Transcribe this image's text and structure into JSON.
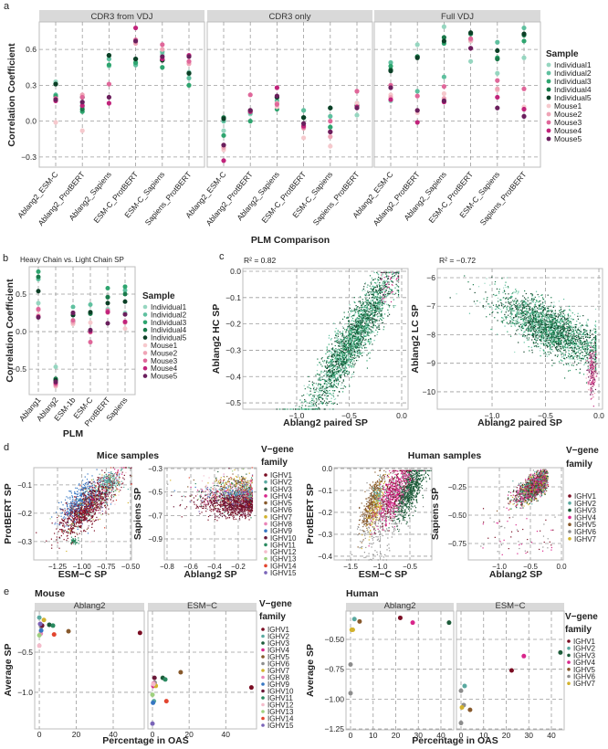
{
  "panel_labels": [
    "a",
    "b",
    "c",
    "d",
    "e"
  ],
  "sample_colors": [
    "#96d6c0",
    "#5fc09f",
    "#2ea56f",
    "#19794a",
    "#0b3f26",
    "#f6c9cd",
    "#efa4b6",
    "#e0679a",
    "#c1237b",
    "#6a1f5d"
  ],
  "vgene_colors": [
    "#7a0c22",
    "#5aa9a0",
    "#1d5c3a",
    "#d8268b",
    "#87592c",
    "#8d8d8d",
    "#d2b22d",
    "#e985b8",
    "#3676c2",
    "#6a1838",
    "#2a8a60",
    "#f4bccb",
    "#9fd07f",
    "#e2452f",
    "#7a64b8"
  ],
  "chart_data": [
    {
      "panel": "a",
      "type": "scatter",
      "xlabel": "PLM Comparison",
      "ylabel": "Correlation Coefficient",
      "ylim": [
        -0.385,
        0.83
      ],
      "yticks": [
        -0.3,
        0,
        0.3,
        0.6
      ],
      "ytick_labels": [
        "−0.3",
        "0.0",
        "0.3",
        "0.6"
      ],
      "categories": [
        "Ablang2_ESM-C",
        "Ablang2_ProtBERT",
        "Ablang2_Sapiens",
        "ESM-C_ProtBERT",
        "ESM-C_Sapiens",
        "Sapiens_ProtBERT"
      ],
      "facets": [
        {
          "title": "CDR3 from VDJ",
          "points": [
            [
              0.33,
              0.22,
              0.21,
              0.31,
              0.31,
              -0.01,
              0.18,
              0.19,
              0.17,
              0.18
            ],
            [
              0.15,
              0.12,
              0.08,
              0.1,
              0.2,
              -0.08,
              0.22,
              0.2,
              0.13,
              0.16
            ],
            [
              0.46,
              0.52,
              0.47,
              0.55,
              0.55,
              0.2,
              0.31,
              0.31,
              0.15,
              0.2
            ],
            [
              0.48,
              0.47,
              0.49,
              0.52,
              0.52,
              0.66,
              0.65,
              0.68,
              0.78,
              0.67
            ],
            [
              0.56,
              0.58,
              0.45,
              0.51,
              0.51,
              0.6,
              0.6,
              0.64,
              0.52,
              0.54
            ],
            [
              0.41,
              0.36,
              0.3,
              0.4,
              0.4,
              0.49,
              0.48,
              0.5,
              0.55,
              0.54
            ]
          ]
        },
        {
          "title": "CDR3 only",
          "points": [
            [
              -0.08,
              0.0,
              -0.12,
              0.03,
              0.02,
              -0.24,
              -0.22,
              -0.2,
              -0.33,
              -0.2
            ],
            [
              0.06,
              0.07,
              0.0,
              0.08,
              0.09,
              0.08,
              0.09,
              0.22,
              0.08,
              0.09
            ],
            [
              0.15,
              0.17,
              0.1,
              0.2,
              0.2,
              0.12,
              0.15,
              0.14,
              0.28,
              0.21
            ],
            [
              0.09,
              0.09,
              0.03,
              0.03,
              0.03,
              -0.14,
              -0.06,
              -0.05,
              -0.04,
              -0.02
            ],
            [
              -0.05,
              0.04,
              -0.05,
              0.11,
              0.11,
              -0.21,
              -0.13,
              0.0,
              -0.09,
              -0.09
            ],
            [
              0.05,
              0.15,
              0.12,
              0.13,
              0.12,
              0.15,
              0.25,
              0.25,
              0.12,
              0.11
            ]
          ]
        },
        {
          "title": "Full VDJ",
          "points": [
            [
              0.17,
              0.49,
              0.46,
              0.43,
              0.42,
              0.22,
              0.2,
              0.3,
              0.18,
              0.28
            ],
            [
              0.64,
              0.25,
              0.54,
              0.54,
              0.53,
              0.07,
              0.09,
              0.21,
              -0.01,
              0.09
            ],
            [
              0.79,
              0.37,
              0.65,
              0.7,
              0.67,
              0.23,
              0.19,
              0.29,
              0.16,
              0.17
            ],
            [
              0.5,
              0.68,
              0.67,
              0.73,
              0.74,
              0.67,
              0.68,
              0.69,
              0.61,
              0.61
            ],
            [
              0.4,
              0.66,
              0.53,
              0.52,
              0.59,
              0.26,
              0.27,
              0.34,
              0.2,
              0.11
            ],
            [
              0.53,
              0.78,
              0.67,
              0.72,
              0.73,
              0.12,
              0.1,
              0.27,
              0.1,
              0.04
            ]
          ]
        }
      ],
      "legend": {
        "title": "Sample",
        "entries": [
          "Individual1",
          "Individual2",
          "Individual3",
          "Individual4",
          "Individual5",
          "Mouse1",
          "Mouse2",
          "Mouse3",
          "Mouse4",
          "Mouse5"
        ]
      }
    },
    {
      "panel": "b",
      "type": "scatter",
      "title": "Heavy Chain vs. Light Chain SP",
      "xlabel": "PLM",
      "ylabel": "Correlation Coefficient",
      "ylim": [
        -0.84,
        0.866
      ],
      "yticks": [
        -0.5,
        0,
        0.5
      ],
      "ytick_labels": [
        "−0.5",
        "0.0",
        "0.5"
      ],
      "categories": [
        "Ablang1",
        "Ablang2",
        "ESM-1b",
        "ESM-C",
        "ProtBERT",
        "Sapiens"
      ],
      "points": [
        [
          0.38,
          0.7,
          0.8,
          0.73,
          0.54,
          0.22,
          0.29,
          0.3,
          0.2,
          0.19
        ],
        [
          -0.47,
          -0.7,
          -0.65,
          -0.63,
          -0.65,
          -0.73,
          -0.72,
          -0.7,
          -0.68,
          -0.67
        ],
        [
          0.15,
          0.33,
          0.22,
          0.13,
          0.22,
          0.1,
          0.12,
          0.15,
          0.25,
          0.25
        ],
        [
          0.25,
          0.36,
          0.24,
          0.24,
          0.26,
          0.12,
          -0.01,
          -0.14,
          0.0,
          0.02
        ],
        [
          0.3,
          0.46,
          0.58,
          0.46,
          0.38,
          0.25,
          0.27,
          0.28,
          0.26,
          0.11
        ],
        [
          0.25,
          0.55,
          0.6,
          0.5,
          0.4,
          0.04,
          0.12,
          0.13,
          0.13,
          0.23
        ]
      ],
      "legend": {
        "title": "Sample",
        "entries": [
          "Individual1",
          "Individual2",
          "Individual3",
          "Individual4",
          "Individual5",
          "Mouse1",
          "Mouse2",
          "Mouse3",
          "Mouse4",
          "Mouse5"
        ]
      }
    },
    {
      "panel": "c",
      "type": "scatter",
      "annotation": "R² = 0.82",
      "xlabel": "Ablang2 paired SP",
      "ylabel": "Ablang2 HC SP",
      "xlim": [
        -1.513,
        0.061
      ],
      "ylim": [
        -0.524,
        0.0104
      ],
      "xticks": [
        -1.0,
        -0.5,
        0.0
      ],
      "xtick_labels": [
        "−1.0",
        "−0.5",
        "0.0"
      ],
      "yticks": [
        0.0,
        -0.1,
        -0.2,
        -0.3,
        -0.4,
        -0.5
      ],
      "ytick_labels": [
        "0.0",
        "−0.1",
        "−0.2",
        "−0.3",
        "−0.4",
        "−0.5"
      ]
    },
    {
      "panel": "c",
      "type": "scatter",
      "annotation": "R² = −0.72",
      "xlabel": "Ablang2 paired SP",
      "ylabel": "Ablang2 LC SP",
      "xlim": [
        -1.513,
        0.034
      ],
      "ylim": [
        -10.61,
        -5.68
      ],
      "xticks": [
        -1.0,
        -0.5,
        0.0
      ],
      "xtick_labels": [
        "−1.0",
        "−0.5",
        "0.0"
      ],
      "yticks": [
        -6,
        -7,
        -8,
        -9,
        -10
      ],
      "ytick_labels": [
        "−6",
        "−7",
        "−8",
        "−9",
        "−10"
      ]
    },
    {
      "panel": "d",
      "type": "scatter",
      "group_title": "Mice samples",
      "xlabel": "ESM−C SP",
      "ylabel": "ProtBERT SP",
      "xlim": [
        -1.494,
        -0.49
      ],
      "ylim": [
        -0.365,
        -0.039
      ],
      "xticks": [
        -1.25,
        -1.0,
        -0.75,
        -0.5
      ],
      "xtick_labels": [
        "−1.25",
        "−1.00",
        "−0.75",
        "−0.50"
      ],
      "yticks": [
        -0.1,
        -0.2,
        -0.3
      ],
      "ytick_labels": [
        "−0.1",
        "−0.2",
        "−0.3"
      ]
    },
    {
      "panel": "d",
      "type": "scatter",
      "xlabel": "Ablang2 SP",
      "ylabel": "Sapiens SP",
      "xlim": [
        -0.823,
        -0.046
      ],
      "ylim": [
        -1.079,
        -0.292
      ],
      "xticks": [
        -0.8,
        -0.6,
        -0.4,
        -0.2
      ],
      "xtick_labels": [
        "−0.8",
        "−0.6",
        "−0.4",
        "−0.2"
      ],
      "yticks": [
        -0.3,
        -0.5,
        -0.7,
        -0.9
      ],
      "ytick_labels": [
        "−0.3",
        "−0.5",
        "−0.7",
        "−0.9"
      ],
      "legend": {
        "title_lines": [
          "V−gene",
          "family"
        ],
        "entries": [
          "IGHV1",
          "IGHV2",
          "IGHV3",
          "IGHV4",
          "IGHV5",
          "IGHV6",
          "IGHV7",
          "IGHV8",
          "IGHV9",
          "IGHV10",
          "IGHV11",
          "IGHV12",
          "IGHV13",
          "IGHV14",
          "IGHV15"
        ]
      }
    },
    {
      "panel": "d",
      "type": "scatter",
      "group_title": "Human samples",
      "xlabel": "ESM−C SP",
      "ylabel": "ProtBERT SP",
      "xlim": [
        -1.777,
        -0.131
      ],
      "ylim": [
        -0.417,
        0.004
      ],
      "xticks": [
        -1.5,
        -1.0,
        -0.5
      ],
      "xtick_labels": [
        "−1.5",
        "−1.0",
        "−0.5"
      ],
      "yticks": [
        0.0,
        -0.1,
        -0.2,
        -0.3,
        -0.4
      ],
      "ytick_labels": [
        "0.0",
        "−0.1",
        "−0.2",
        "−0.3",
        "−0.4"
      ]
    },
    {
      "panel": "d",
      "type": "scatter",
      "xlabel": "Ablang2 SP",
      "ylabel": "Sapiens SP",
      "xlim": [
        -1.5,
        0.029
      ],
      "ylim": [
        -0.895,
        -0.081
      ],
      "xticks": [
        -1.0,
        -0.5,
        0.0
      ],
      "xtick_labels": [
        "−1.0",
        "−0.5",
        "0.0"
      ],
      "yticks": [
        -0.25,
        -0.5,
        -0.75
      ],
      "ytick_labels": [
        "−0.25",
        "−0.50",
        "−0.75"
      ],
      "legend": {
        "title_lines": [
          "V−gene",
          "family"
        ],
        "entries": [
          "IGHV1",
          "IGHV2",
          "IGHV3",
          "IGHV4",
          "IGHV5",
          "IGHV6",
          "IGHV7"
        ]
      }
    },
    {
      "panel": "e",
      "type": "scatter",
      "group_title": "Mouse",
      "xlabel": "Percentage in OAS",
      "ylabel": "Average SP",
      "xlim": [
        -2.5,
        56.8
      ],
      "ylim": [
        -1.455,
        0.011
      ],
      "xticks": [
        0,
        20,
        40
      ],
      "xtick_labels": [
        "0",
        "20",
        "40"
      ],
      "yticks": [
        -0.5,
        -1.0
      ],
      "ytick_labels": [
        "−0.5",
        "−1.0"
      ],
      "facets": [
        {
          "title": "Ablang2",
          "points": [
            {
              "family": "IGHV1",
              "x": 54.5,
              "y": -0.26
            },
            {
              "family": "IGHV2",
              "x": 0.0,
              "y": -0.07
            },
            {
              "family": "IGHV3",
              "x": 5.4,
              "y": -0.16
            },
            {
              "family": "IGHV4",
              "x": 0.5,
              "y": -0.15
            },
            {
              "family": "IGHV5",
              "x": 15.8,
              "y": -0.24
            },
            {
              "family": "IGHV6",
              "x": 1.0,
              "y": -0.18
            },
            {
              "family": "IGHV7",
              "x": 2.5,
              "y": -0.1
            },
            {
              "family": "IGHV8",
              "x": 0.8,
              "y": -0.27
            },
            {
              "family": "IGHV9",
              "x": 1.0,
              "y": -0.23
            },
            {
              "family": "IGHV10",
              "x": 1.5,
              "y": -0.17
            },
            {
              "family": "IGHV11",
              "x": 7.4,
              "y": -0.17
            },
            {
              "family": "IGHV12",
              "x": 0.0,
              "y": -0.42
            },
            {
              "family": "IGHV13",
              "x": 0.0,
              "y": -0.29
            },
            {
              "family": "IGHV14",
              "x": 8.0,
              "y": -0.28
            },
            {
              "family": "IGHV15",
              "x": 0.5,
              "y": -0.15
            }
          ]
        },
        {
          "title": "ESM−C",
          "points": [
            {
              "family": "IGHV1",
              "x": 54.0,
              "y": -0.94
            },
            {
              "family": "IGHV2",
              "x": 0.8,
              "y": -1.11
            },
            {
              "family": "IGHV3",
              "x": 5.6,
              "y": -0.82
            },
            {
              "family": "IGHV4",
              "x": 0.5,
              "y": -0.92
            },
            {
              "family": "IGHV5",
              "x": 15.4,
              "y": -0.75
            },
            {
              "family": "IGHV6",
              "x": 1.2,
              "y": -0.88
            },
            {
              "family": "IGHV7",
              "x": 1.8,
              "y": -0.92
            },
            {
              "family": "IGHV8",
              "x": 0.6,
              "y": -0.89
            },
            {
              "family": "IGHV9",
              "x": 0.3,
              "y": -1.13
            },
            {
              "family": "IGHV10",
              "x": 1.1,
              "y": -0.82
            },
            {
              "family": "IGHV11",
              "x": 7.0,
              "y": -0.84
            },
            {
              "family": "IGHV12",
              "x": 0.5,
              "y": -0.9
            },
            {
              "family": "IGHV13",
              "x": 0.0,
              "y": -1.03
            },
            {
              "family": "IGHV14",
              "x": 7.6,
              "y": -1.11
            },
            {
              "family": "IGHV15",
              "x": 0.0,
              "y": -1.39
            }
          ]
        }
      ],
      "legend": {
        "title_lines": [
          "V−gene",
          "family"
        ],
        "entries": [
          "IGHV1",
          "IGHV2",
          "IGHV3",
          "IGHV4",
          "IGHV5",
          "IGHV6",
          "IGHV7",
          "IGHV8",
          "IGHV9",
          "IGHV10",
          "IGHV11",
          "IGHV12",
          "IGHV13",
          "IGHV14",
          "IGHV15"
        ]
      }
    },
    {
      "panel": "e",
      "type": "scatter",
      "group_title": "Human",
      "xlabel": "Percentage in OAS",
      "ylabel": "Average SP",
      "xlim": [
        -2.02,
        45.66
      ],
      "ylim": [
        -1.257,
        -0.263
      ],
      "xticks": [
        0,
        10,
        20,
        30,
        40
      ],
      "xtick_labels": [
        "0",
        "10",
        "20",
        "30",
        "40"
      ],
      "yticks": [
        -0.5,
        -0.75,
        -1.0,
        -1.25
      ],
      "ytick_labels": [
        "−0.50",
        "−0.75",
        "−1.00",
        "−1.25"
      ],
      "facets": [
        {
          "title": "Ablang2",
          "points": [
            {
              "family": "IGHV1",
              "x": 22.0,
              "y": -0.32
            },
            {
              "family": "IGHV2",
              "x": 1.7,
              "y": -0.33
            },
            {
              "family": "IGHV3",
              "x": 43.6,
              "y": -0.36
            },
            {
              "family": "IGHV4",
              "x": 27.5,
              "y": -0.36
            },
            {
              "family": "IGHV5",
              "x": 4.0,
              "y": -0.35
            },
            {
              "family": "IGHV6",
              "x": 0.0,
              "y": -0.71
            },
            {
              "family": "IGHV6",
              "x": 0.0,
              "y": -0.95
            },
            {
              "family": "IGHV7",
              "x": 0.5,
              "y": -0.42
            },
            {
              "family": "IGHV7",
              "x": 1.0,
              "y": -0.42
            }
          ]
        },
        {
          "title": "ESM−C",
          "points": [
            {
              "family": "IGHV1",
              "x": 22.4,
              "y": -0.76
            },
            {
              "family": "IGHV2",
              "x": 1.6,
              "y": -0.89
            },
            {
              "family": "IGHV3",
              "x": 44.0,
              "y": -0.61
            },
            {
              "family": "IGHV4",
              "x": 27.8,
              "y": -0.64
            },
            {
              "family": "IGHV5",
              "x": 4.0,
              "y": -1.09
            },
            {
              "family": "IGHV6",
              "x": 0.0,
              "y": -0.93
            },
            {
              "family": "IGHV6",
              "x": 1.2,
              "y": -1.05
            },
            {
              "family": "IGHV6",
              "x": 0.0,
              "y": -1.2
            },
            {
              "family": "IGHV7",
              "x": 0.4,
              "y": -1.07
            }
          ]
        }
      ],
      "legend": {
        "title_lines": [
          "V−gene",
          "family"
        ],
        "entries": [
          "IGHV1",
          "IGHV2",
          "IGHV3",
          "IGHV4",
          "IGHV5",
          "IGHV6",
          "IGHV7"
        ]
      }
    }
  ]
}
